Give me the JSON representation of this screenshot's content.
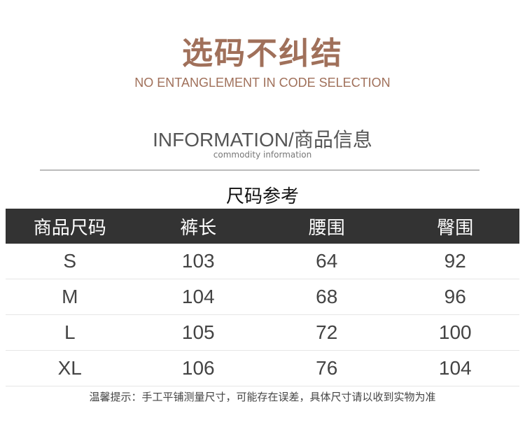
{
  "header": {
    "title": "选码不纠结",
    "subtitle": "NO ENTANGLEMENT IN CODE SELECTION"
  },
  "info": {
    "title": "INFORMATION/商品信息",
    "subtitle": "commodity information"
  },
  "size_table": {
    "title": "尺码参考",
    "columns": [
      "商品尺码",
      "裤长",
      "腰围",
      "臀围"
    ],
    "rows": [
      [
        "S",
        "103",
        "64",
        "92"
      ],
      [
        "M",
        "104",
        "68",
        "96"
      ],
      [
        "L",
        "105",
        "72",
        "100"
      ],
      [
        "XL",
        "106",
        "76",
        "104"
      ]
    ]
  },
  "note": "温馨提示：手工平铺测量尺寸，可能存在误差，具体尺寸请以收到实物为准",
  "colors": {
    "accent": "#a0705a",
    "header_bar": "#333333"
  }
}
